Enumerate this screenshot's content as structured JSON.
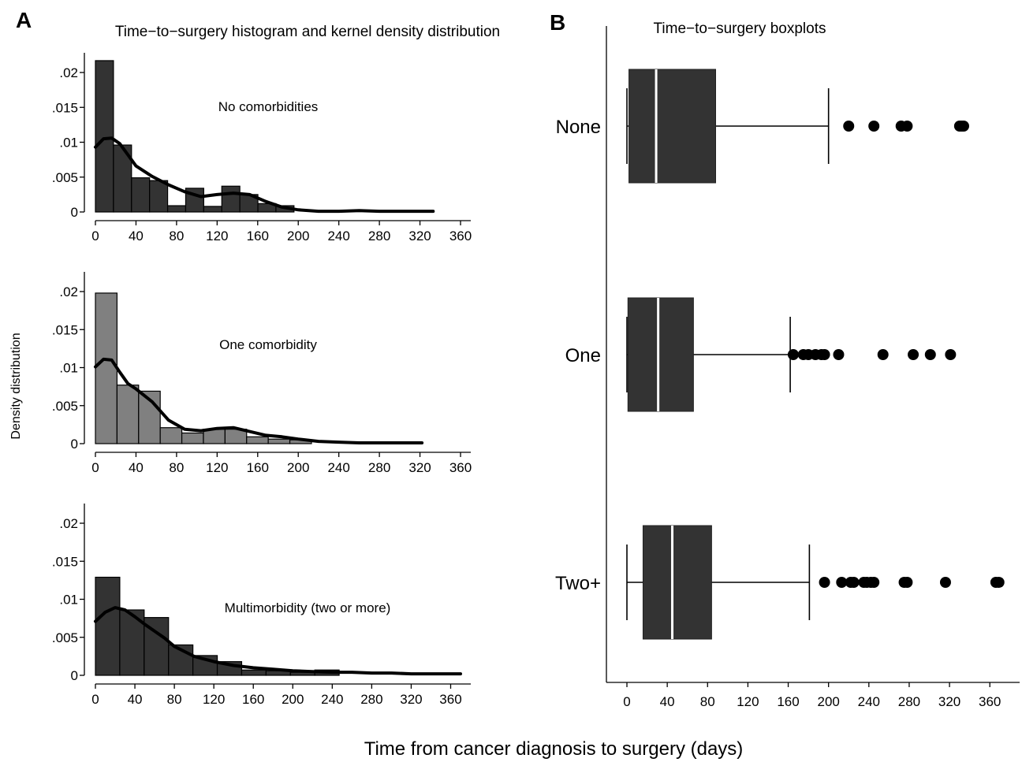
{
  "figure": {
    "common_xlabel": "Time from cancer diagnosis to surgery (days)",
    "common_ylabel": "Density distribution"
  },
  "chart_data": [
    {
      "panel": "A",
      "type": "bar",
      "title": "Time−to−surgery histogram and kernel density distribution",
      "subplots": [
        {
          "annotation": "No comorbidities",
          "bar_color": "#333333",
          "bin_start": 0,
          "bin_width": 17.8,
          "bar_values": [
            0.0217,
            0.0096,
            0.0049,
            0.0045,
            0.0009,
            0.0034,
            0.0008,
            0.0037,
            0.0025,
            0.0012,
            0.0009
          ],
          "kde_x": [
            0,
            8,
            16,
            24,
            32,
            40,
            56,
            72,
            88,
            104,
            120,
            136,
            152,
            168,
            184,
            200,
            220,
            240,
            260,
            280,
            300,
            320,
            333
          ],
          "kde_y": [
            0.0093,
            0.0105,
            0.0106,
            0.0098,
            0.0082,
            0.0066,
            0.0051,
            0.0039,
            0.0029,
            0.0022,
            0.0025,
            0.0027,
            0.0025,
            0.0015,
            0.0007,
            0.0003,
            0.0001,
            0.0001,
            0.0002,
            0.0001,
            0.0001,
            0.0001,
            0.0001
          ],
          "xlim": [
            0,
            360
          ],
          "ylim": [
            0,
            0.02
          ],
          "x_ticks": [
            "0",
            "40",
            "80",
            "120",
            "160",
            "200",
            "240",
            "280",
            "320",
            "360"
          ],
          "y_ticks": [
            "0",
            ".005",
            ".01",
            ".015",
            ".02"
          ]
        },
        {
          "annotation": "One comorbidity",
          "bar_color": "#808080",
          "bin_start": 0,
          "bin_width": 21.3,
          "bar_values": [
            0.0198,
            0.0077,
            0.0069,
            0.0021,
            0.0014,
            0.0019,
            0.0019,
            0.0009,
            0.0006,
            0.0005
          ],
          "kde_x": [
            0,
            8,
            16,
            24,
            32,
            40,
            56,
            72,
            88,
            104,
            120,
            136,
            152,
            168,
            184,
            200,
            220,
            240,
            260,
            280,
            300,
            322
          ],
          "kde_y": [
            0.0101,
            0.0111,
            0.011,
            0.0094,
            0.0079,
            0.0072,
            0.0055,
            0.0031,
            0.0019,
            0.0017,
            0.002,
            0.0021,
            0.0016,
            0.0011,
            0.0009,
            0.0006,
            0.0003,
            0.0002,
            0.0001,
            0.0001,
            0.0001,
            0.0001
          ],
          "xlim": [
            0,
            360
          ],
          "ylim": [
            0,
            0.02
          ],
          "x_ticks": [
            "0",
            "40",
            "80",
            "120",
            "160",
            "200",
            "240",
            "280",
            "320",
            "360"
          ],
          "y_ticks": [
            "0",
            ".005",
            ".01",
            ".015",
            ".02"
          ]
        },
        {
          "annotation": "Multimorbidity (two or more)",
          "bar_color": "#333333",
          "bin_start": 0,
          "bin_width": 24.7,
          "bar_values": [
            0.0129,
            0.0086,
            0.0076,
            0.004,
            0.0026,
            0.0018,
            0.0007,
            0.0006,
            0.0004,
            0.0007
          ],
          "kde_x": [
            0,
            10,
            20,
            30,
            40,
            50,
            60,
            70,
            80,
            100,
            120,
            140,
            160,
            180,
            200,
            220,
            240,
            260,
            280,
            300,
            320,
            340,
            370
          ],
          "kde_y": [
            0.0071,
            0.0083,
            0.0089,
            0.0086,
            0.0077,
            0.0067,
            0.0058,
            0.0049,
            0.0038,
            0.0025,
            0.0018,
            0.0013,
            0.001,
            0.0008,
            0.0006,
            0.0005,
            0.0004,
            0.0004,
            0.0003,
            0.0003,
            0.0002,
            0.0002,
            0.0002
          ],
          "xlim": [
            0,
            370
          ],
          "ylim": [
            0,
            0.02
          ],
          "x_ticks": [
            "0",
            "40",
            "80",
            "120",
            "160",
            "200",
            "240",
            "280",
            "320",
            "360"
          ],
          "y_ticks": [
            "0",
            ".005",
            ".01",
            ".015",
            ".02"
          ]
        }
      ]
    },
    {
      "panel": "B",
      "type": "boxplot",
      "title": "Time−to−surgery boxplots",
      "xlim": [
        0,
        370
      ],
      "x_ticks": [
        "0",
        "40",
        "80",
        "120",
        "160",
        "200",
        "240",
        "280",
        "320",
        "360"
      ],
      "box_color": "#333333",
      "groups": [
        {
          "label": "None",
          "whisker_low": 0,
          "q1": 2,
          "median": 29,
          "q3": 88,
          "whisker_high": 200,
          "outliers": [
            220,
            245,
            272,
            278,
            330,
            332,
            334
          ]
        },
        {
          "label": "One",
          "whisker_low": 0,
          "q1": 1,
          "median": 31,
          "q3": 66,
          "whisker_high": 162,
          "outliers": [
            165,
            175,
            180,
            187,
            193,
            196,
            210,
            254,
            284,
            301,
            321
          ]
        },
        {
          "label": "Two+",
          "whisker_low": 0,
          "q1": 16,
          "median": 45,
          "q3": 84,
          "whisker_high": 181,
          "outliers": [
            196,
            213,
            222,
            225,
            235,
            238,
            242,
            245,
            275,
            278,
            316,
            366,
            369
          ]
        }
      ]
    }
  ]
}
